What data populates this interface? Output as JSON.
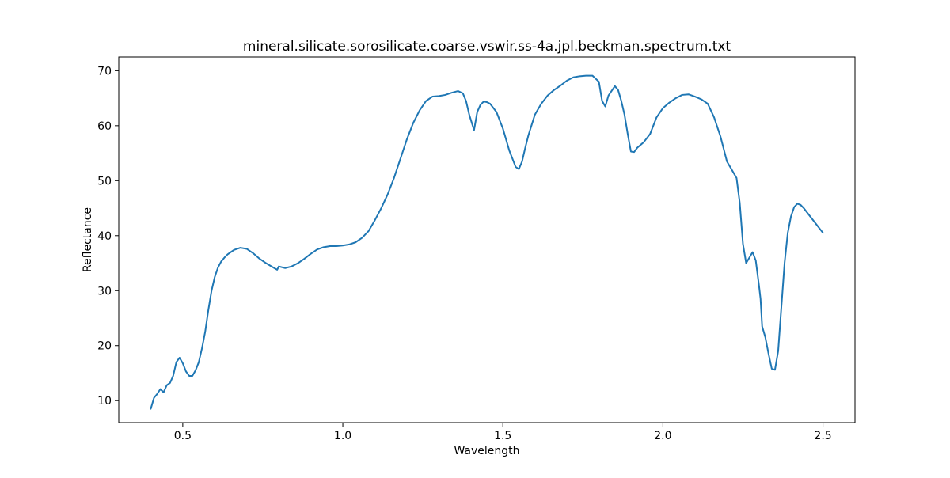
{
  "chart_data": {
    "type": "line",
    "title": "mineral.silicate.sorosilicate.coarse.vswir.ss-4a.jpl.beckman.spectrum.txt",
    "xlabel": "Wavelength",
    "ylabel": "Reflectance",
    "xlim": [
      0.3,
      2.6
    ],
    "ylim": [
      6.0,
      72.5
    ],
    "xticks": [
      0.5,
      1.0,
      1.5,
      2.0,
      2.5
    ],
    "xtick_labels": [
      "0.5",
      "1.0",
      "1.5",
      "2.0",
      "2.5"
    ],
    "yticks": [
      10,
      20,
      30,
      40,
      50,
      60,
      70
    ],
    "ytick_labels": [
      "10",
      "20",
      "30",
      "40",
      "50",
      "60",
      "70"
    ],
    "grid": false,
    "series": [
      {
        "color": "#1f77b4",
        "x": [
          0.4,
          0.41,
          0.42,
          0.43,
          0.44,
          0.45,
          0.455,
          0.46,
          0.47,
          0.48,
          0.49,
          0.5,
          0.51,
          0.52,
          0.53,
          0.54,
          0.55,
          0.56,
          0.57,
          0.58,
          0.59,
          0.6,
          0.61,
          0.62,
          0.63,
          0.64,
          0.65,
          0.66,
          0.68,
          0.7,
          0.72,
          0.74,
          0.76,
          0.78,
          0.795,
          0.8,
          0.82,
          0.84,
          0.86,
          0.88,
          0.9,
          0.92,
          0.94,
          0.96,
          0.98,
          1.0,
          1.02,
          1.04,
          1.06,
          1.08,
          1.1,
          1.12,
          1.14,
          1.16,
          1.18,
          1.2,
          1.22,
          1.24,
          1.26,
          1.28,
          1.3,
          1.32,
          1.34,
          1.36,
          1.375,
          1.385,
          1.395,
          1.41,
          1.42,
          1.43,
          1.44,
          1.45,
          1.46,
          1.48,
          1.5,
          1.52,
          1.54,
          1.55,
          1.56,
          1.57,
          1.58,
          1.6,
          1.62,
          1.64,
          1.66,
          1.68,
          1.7,
          1.72,
          1.74,
          1.76,
          1.78,
          1.8,
          1.81,
          1.82,
          1.83,
          1.85,
          1.86,
          1.87,
          1.88,
          1.89,
          1.9,
          1.91,
          1.92,
          1.94,
          1.96,
          1.98,
          2.0,
          2.02,
          2.04,
          2.06,
          2.08,
          2.1,
          2.12,
          2.14,
          2.16,
          2.18,
          2.2,
          2.22,
          2.23,
          2.24,
          2.25,
          2.26,
          2.27,
          2.28,
          2.29,
          2.3,
          2.305,
          2.31,
          2.32,
          2.33,
          2.34,
          2.35,
          2.36,
          2.37,
          2.38,
          2.39,
          2.4,
          2.41,
          2.42,
          2.43,
          2.44,
          2.46,
          2.48,
          2.5
        ],
        "y": [
          8.5,
          10.5,
          11.2,
          12.1,
          11.5,
          12.8,
          13.0,
          13.2,
          14.5,
          17.0,
          17.8,
          16.8,
          15.3,
          14.5,
          14.5,
          15.5,
          17.0,
          19.5,
          22.5,
          26.5,
          30.0,
          32.5,
          34.2,
          35.3,
          36.0,
          36.6,
          37.0,
          37.4,
          37.8,
          37.6,
          36.8,
          35.8,
          35.0,
          34.3,
          33.8,
          34.4,
          34.1,
          34.4,
          35.0,
          35.8,
          36.7,
          37.5,
          37.9,
          38.1,
          38.1,
          38.2,
          38.4,
          38.8,
          39.6,
          40.8,
          42.8,
          45.0,
          47.5,
          50.5,
          54.0,
          57.5,
          60.5,
          62.8,
          64.5,
          65.3,
          65.4,
          65.6,
          66.0,
          66.3,
          65.9,
          64.5,
          62.0,
          59.2,
          62.5,
          63.8,
          64.4,
          64.3,
          64.0,
          62.5,
          59.5,
          55.5,
          52.5,
          52.1,
          53.5,
          56.0,
          58.3,
          62.0,
          64.0,
          65.5,
          66.5,
          67.3,
          68.2,
          68.8,
          69.0,
          69.1,
          69.1,
          68.0,
          64.5,
          63.5,
          65.5,
          67.2,
          66.5,
          64.5,
          62.0,
          58.5,
          55.3,
          55.2,
          56.0,
          57.0,
          58.5,
          61.5,
          63.2,
          64.2,
          65.0,
          65.6,
          65.7,
          65.3,
          64.8,
          64.0,
          61.5,
          58.0,
          53.5,
          51.5,
          50.5,
          46.0,
          38.5,
          35.0,
          36.0,
          37.0,
          35.5,
          31.0,
          28.5,
          23.5,
          21.5,
          18.5,
          15.8,
          15.6,
          19.0,
          27.0,
          35.0,
          40.5,
          43.5,
          45.2,
          45.8,
          45.6,
          45.0,
          43.5,
          42.0,
          40.5
        ],
        "width": 2
      }
    ]
  }
}
